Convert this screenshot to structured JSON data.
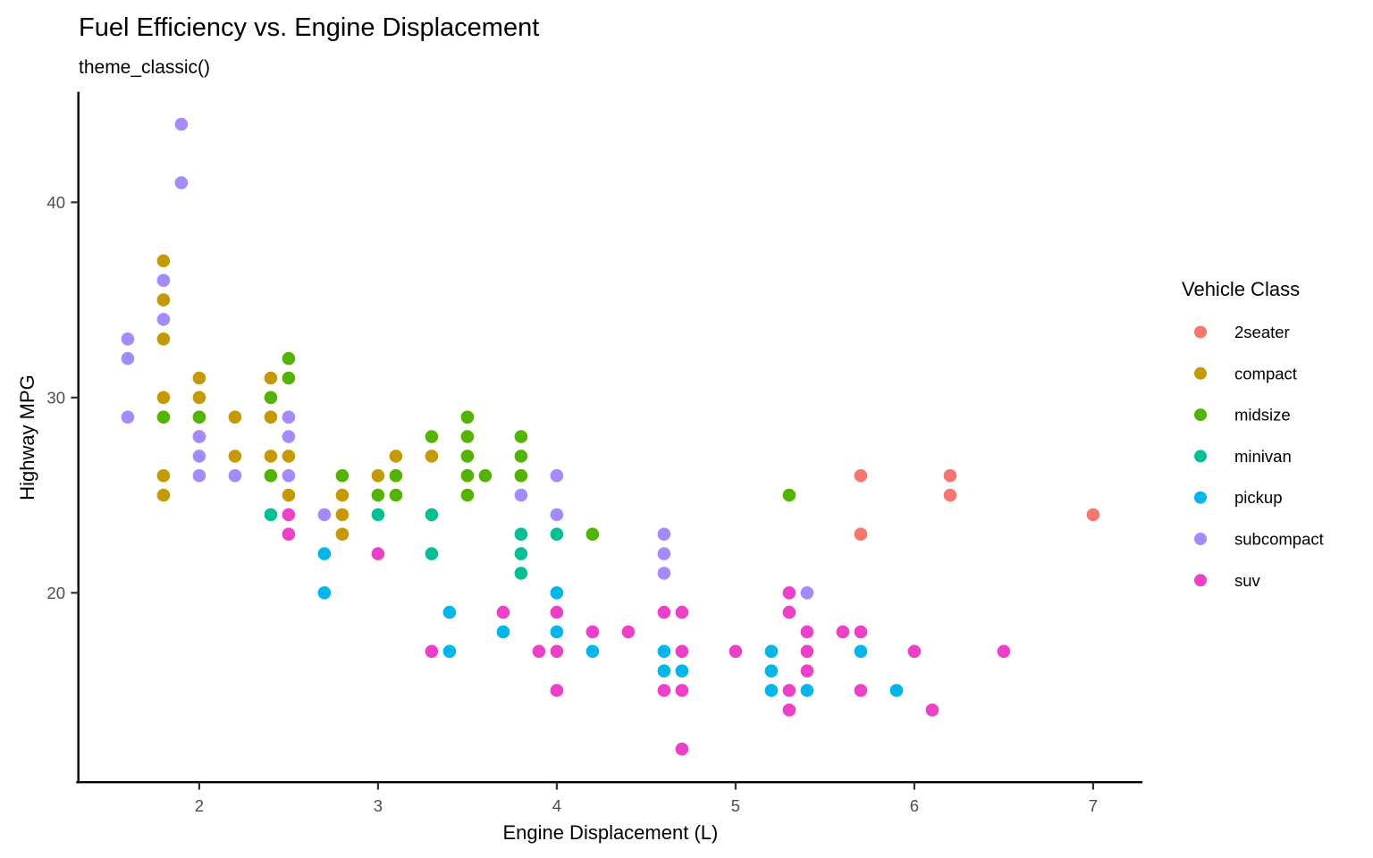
{
  "page": {
    "background": "#FFFFFF"
  },
  "chart_data": {
    "type": "scatter",
    "title": "Fuel Efficiency vs. Engine Displacement",
    "subtitle": "theme_classic()",
    "xlabel": "Engine Displacement (L)",
    "ylabel": "Highway MPG",
    "legend_title": "Vehicle Class",
    "legend_position": "right",
    "grid": false,
    "theme": "classic",
    "xlim": [
      1.33,
      7.27
    ],
    "ylim": [
      10.3,
      45.6
    ],
    "x_ticks": [
      2,
      3,
      4,
      5,
      6,
      7
    ],
    "y_ticks": [
      20,
      30,
      40
    ],
    "point_radius_px": 7.3,
    "series": [
      {
        "name": "2seater",
        "color": "#F8766D",
        "points": [
          [
            5.7,
            26
          ],
          [
            5.7,
            23
          ],
          [
            6.2,
            26
          ],
          [
            6.2,
            25
          ],
          [
            7.0,
            24
          ]
        ]
      },
      {
        "name": "compact",
        "color": "#C49A00",
        "points": [
          [
            1.8,
            37
          ],
          [
            1.8,
            35
          ],
          [
            1.8,
            33
          ],
          [
            1.8,
            30
          ],
          [
            1.8,
            26
          ],
          [
            1.8,
            25
          ],
          [
            2.0,
            31
          ],
          [
            2.0,
            30
          ],
          [
            2.2,
            29
          ],
          [
            2.2,
            27
          ],
          [
            2.4,
            31
          ],
          [
            2.4,
            29
          ],
          [
            2.4,
            27
          ],
          [
            2.5,
            27
          ],
          [
            2.5,
            25
          ],
          [
            2.8,
            25
          ],
          [
            2.8,
            24
          ],
          [
            2.8,
            23
          ],
          [
            3.0,
            26
          ],
          [
            3.1,
            27
          ],
          [
            3.3,
            27
          ]
        ]
      },
      {
        "name": "midsize",
        "color": "#53B400",
        "points": [
          [
            1.8,
            29
          ],
          [
            2.0,
            29
          ],
          [
            2.0,
            28
          ],
          [
            2.4,
            30
          ],
          [
            2.4,
            26
          ],
          [
            2.5,
            32
          ],
          [
            2.5,
            31
          ],
          [
            2.8,
            26
          ],
          [
            3.0,
            25
          ],
          [
            3.1,
            26
          ],
          [
            3.1,
            25
          ],
          [
            3.3,
            28
          ],
          [
            3.5,
            29
          ],
          [
            3.5,
            28
          ],
          [
            3.5,
            27
          ],
          [
            3.5,
            26
          ],
          [
            3.5,
            25
          ],
          [
            3.6,
            26
          ],
          [
            3.8,
            28
          ],
          [
            3.8,
            27
          ],
          [
            3.8,
            26
          ],
          [
            4.2,
            23
          ],
          [
            5.3,
            25
          ]
        ]
      },
      {
        "name": "minivan",
        "color": "#00C094",
        "points": [
          [
            2.4,
            24
          ],
          [
            3.0,
            24
          ],
          [
            3.3,
            24
          ],
          [
            3.3,
            22
          ],
          [
            3.8,
            23
          ],
          [
            3.8,
            22
          ],
          [
            3.8,
            21
          ],
          [
            4.0,
            23
          ]
        ]
      },
      {
        "name": "pickup",
        "color": "#00B6EB",
        "points": [
          [
            2.7,
            22
          ],
          [
            2.7,
            20
          ],
          [
            3.4,
            19
          ],
          [
            3.4,
            17
          ],
          [
            3.7,
            18
          ],
          [
            4.0,
            20
          ],
          [
            4.0,
            18
          ],
          [
            4.2,
            17
          ],
          [
            4.6,
            17
          ],
          [
            4.6,
            16
          ],
          [
            4.7,
            16
          ],
          [
            5.2,
            17
          ],
          [
            5.2,
            16
          ],
          [
            5.2,
            15
          ],
          [
            5.4,
            15
          ],
          [
            5.7,
            17
          ],
          [
            5.9,
            15
          ]
        ]
      },
      {
        "name": "subcompact",
        "color": "#A58AFF",
        "points": [
          [
            1.6,
            33
          ],
          [
            1.6,
            32
          ],
          [
            1.6,
            29
          ],
          [
            1.8,
            36
          ],
          [
            1.8,
            34
          ],
          [
            1.9,
            44
          ],
          [
            1.9,
            41
          ],
          [
            2.0,
            28
          ],
          [
            2.0,
            27
          ],
          [
            2.0,
            26
          ],
          [
            2.2,
            26
          ],
          [
            2.5,
            29
          ],
          [
            2.5,
            28
          ],
          [
            2.5,
            26
          ],
          [
            2.7,
            24
          ],
          [
            3.8,
            25
          ],
          [
            4.0,
            26
          ],
          [
            4.0,
            24
          ],
          [
            4.6,
            23
          ],
          [
            4.6,
            22
          ],
          [
            4.6,
            21
          ],
          [
            5.4,
            20
          ]
        ]
      },
      {
        "name": "suv",
        "color": "#EE3FC8",
        "points": [
          [
            2.5,
            24
          ],
          [
            2.5,
            23
          ],
          [
            3.0,
            22
          ],
          [
            3.3,
            17
          ],
          [
            3.7,
            19
          ],
          [
            3.9,
            17
          ],
          [
            4.0,
            19
          ],
          [
            4.0,
            17
          ],
          [
            4.0,
            15
          ],
          [
            4.2,
            18
          ],
          [
            4.4,
            18
          ],
          [
            4.6,
            19
          ],
          [
            4.6,
            15
          ],
          [
            4.7,
            19
          ],
          [
            4.7,
            17
          ],
          [
            4.7,
            15
          ],
          [
            4.7,
            12
          ],
          [
            5.0,
            17
          ],
          [
            5.3,
            20
          ],
          [
            5.3,
            19
          ],
          [
            5.3,
            15
          ],
          [
            5.3,
            14
          ],
          [
            5.4,
            18
          ],
          [
            5.4,
            17
          ],
          [
            5.4,
            16
          ],
          [
            5.6,
            18
          ],
          [
            5.7,
            18
          ],
          [
            5.7,
            15
          ],
          [
            6.0,
            17
          ],
          [
            6.1,
            14
          ],
          [
            6.5,
            17
          ]
        ]
      }
    ]
  }
}
